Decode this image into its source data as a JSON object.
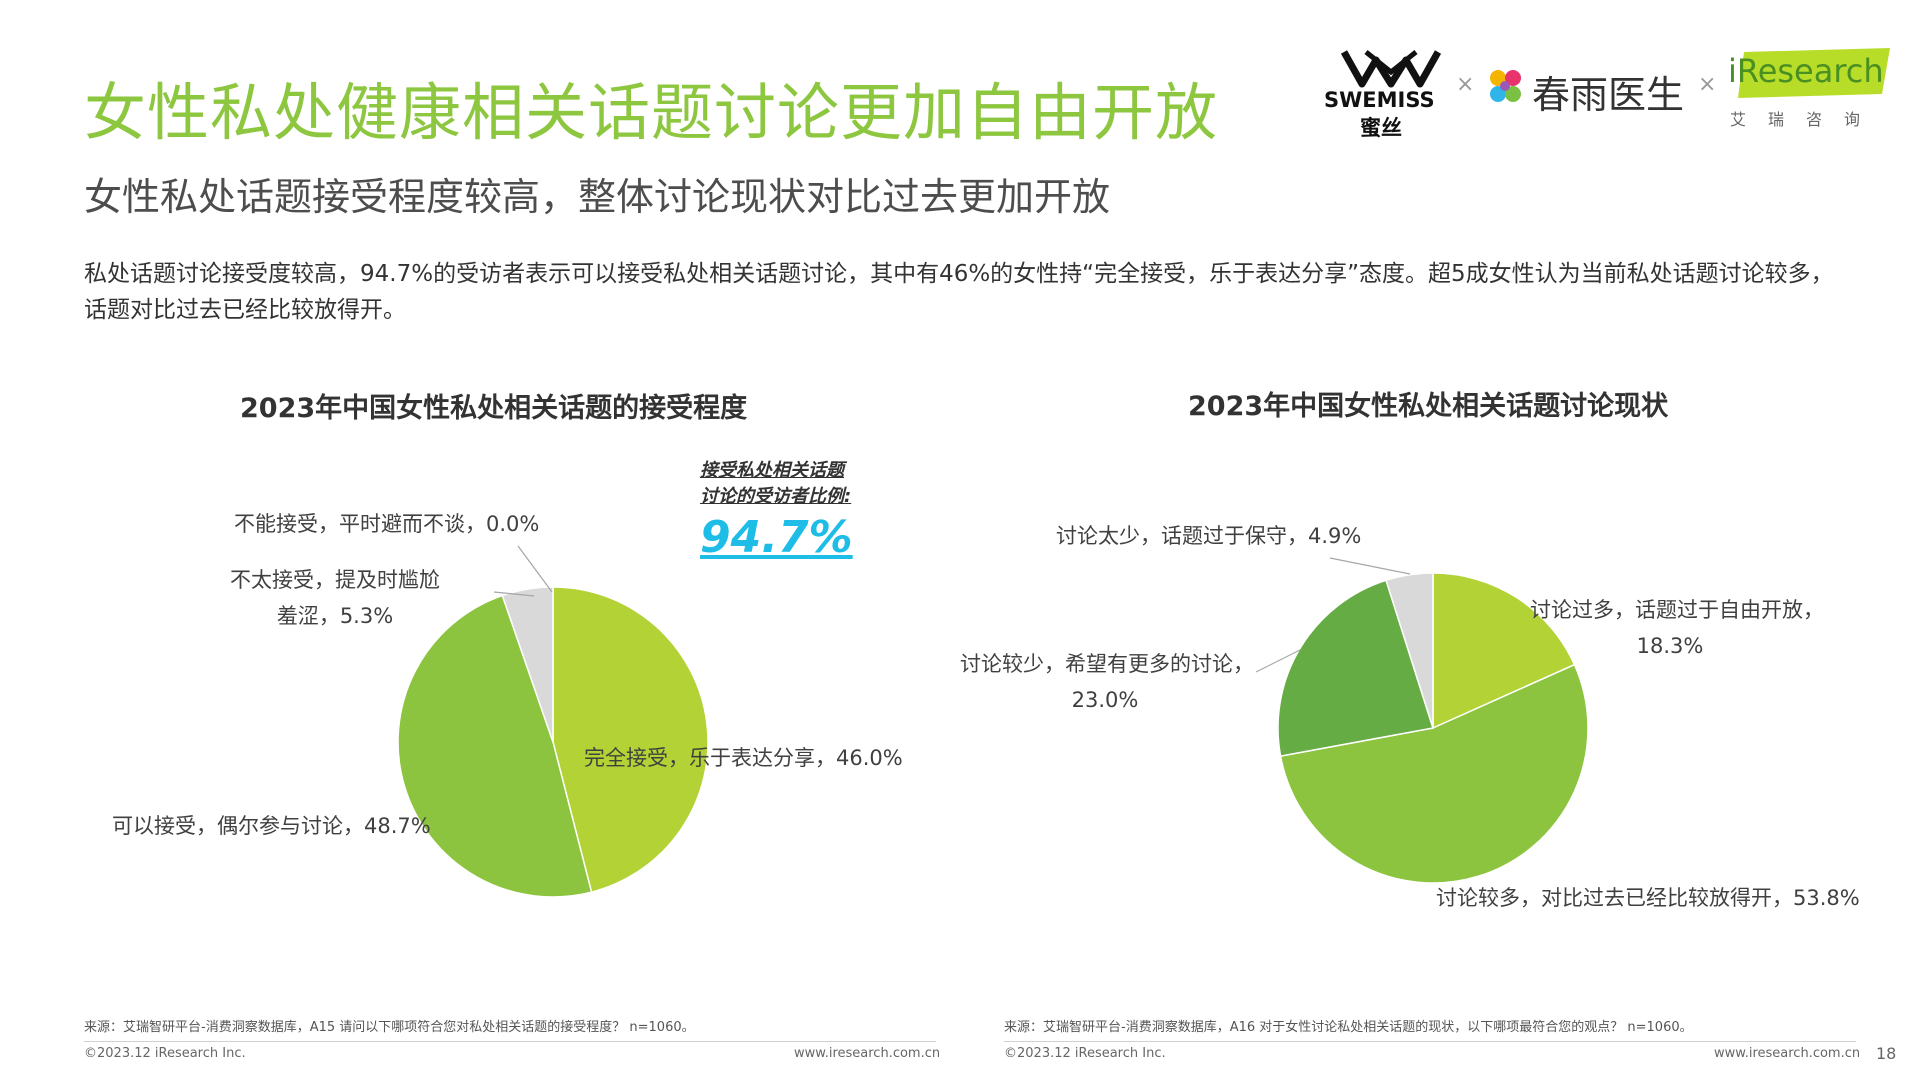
{
  "header": {
    "title": "女性私处健康相关话题讨论更加自由开放",
    "subtitle": "女性私处话题接受程度较高，整体讨论现状对比过去更加开放",
    "description": "私处话题讨论接受度较高，94.7%的受访者表示可以接受私处相关话题讨论，其中有46%的女性持“完全接受，乐于表达分享”态度。超5成女性认为当前私处话题讨论较多，话题对比过去已经比较放得开。"
  },
  "logos": {
    "swemiss_en": "SWEMISS",
    "swemiss_cn": "蜜丝",
    "times_sign": "×",
    "chunyu": "春雨医生",
    "iresearch": "iResearch",
    "iresearch_cn": "艾瑞咨询"
  },
  "callout": {
    "label_line1": "接受私处相关话题",
    "label_line2": "讨论的受访者比例:",
    "value": "94.7%"
  },
  "chart_data": [
    {
      "type": "pie",
      "title": "2023年中国女性私处相关话题的接受程度",
      "start_angle": "12 o'clock, clockwise",
      "slices": [
        {
          "label": "完全接受，乐于表达分享",
          "value": 46.0,
          "display": "46.0%",
          "color": "#b2d235"
        },
        {
          "label": "可以接受，偶尔参与讨论",
          "value": 48.7,
          "display": "48.7%",
          "color": "#8cc43f"
        },
        {
          "label": "不太接受，提及时尴尬羞涩",
          "label_line1": "不太接受，提及时尴尬",
          "label_line2": "羞涩",
          "value": 5.3,
          "display": "5.3%",
          "color": "#d9d9d9"
        },
        {
          "label": "不能接受，平时避而不谈",
          "value": 0.0,
          "display": "0.0%",
          "color": "#bfbfbf"
        }
      ]
    },
    {
      "type": "pie",
      "title": "2023年中国女性私处相关话题讨论现状",
      "start_angle": "12 o'clock, clockwise",
      "slices": [
        {
          "label": "讨论过多，话题过于自由开放",
          "value": 18.3,
          "display": "18.3%",
          "color": "#b2d235"
        },
        {
          "label": "讨论较多，对比过去已经比较放得开",
          "value": 53.8,
          "display": "53.8%",
          "color": "#8cc43f"
        },
        {
          "label": "讨论较少，希望有更多的讨论",
          "value": 23.0,
          "display": "23.0%",
          "color": "#66ac44"
        },
        {
          "label": "讨论太少，话题过于保守",
          "value": 4.9,
          "display": "4.9%",
          "color": "#d9d9d9"
        }
      ]
    }
  ],
  "footer": {
    "source_left": "来源：艾瑞智研平台-消费洞察数据库，A15 请问以下哪项符合您对私处相关话题的接受程度？ n=1060。",
    "source_right": "来源：艾瑞智研平台-消费洞察数据库，A16 对于女性讨论私处相关话题的现状，以下哪项最符合您的观点？ n=1060。",
    "copyright": "©2023.12 iResearch Inc.",
    "website": "www.iresearch.com.cn",
    "page": "18"
  }
}
